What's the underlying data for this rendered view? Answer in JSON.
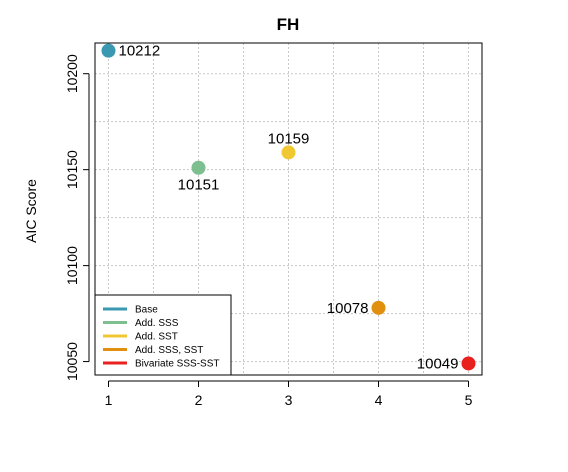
{
  "chart_data": {
    "type": "scatter",
    "title": "FH",
    "xlabel": "",
    "ylabel": "AIC Score",
    "xlim": [
      0.85,
      5.15
    ],
    "ylim": [
      10043,
      10216
    ],
    "x_ticks": [
      1,
      2,
      3,
      4,
      5
    ],
    "y_ticks": [
      10050,
      10100,
      10150,
      10200
    ],
    "grid": true,
    "legend_position": "bottom-left",
    "series": [
      {
        "name": "Base",
        "x": 1,
        "y": 10212,
        "label": "10212",
        "color": "#3a98b0",
        "label_side": "right"
      },
      {
        "name": "Add. SSS",
        "x": 2,
        "y": 10151,
        "label": "10151",
        "color": "#7dbf8e",
        "label_side": "below"
      },
      {
        "name": "Add. SST",
        "x": 3,
        "y": 10159,
        "label": "10159",
        "color": "#f0c832",
        "label_side": "above"
      },
      {
        "name": "Add. SSS, SST",
        "x": 4,
        "y": 10078,
        "label": "10078",
        "color": "#e0900e",
        "label_side": "left"
      },
      {
        "name": "Bivariate SSS-SST",
        "x": 5,
        "y": 10049,
        "label": "10049",
        "color": "#e8201e",
        "label_side": "left"
      }
    ]
  }
}
